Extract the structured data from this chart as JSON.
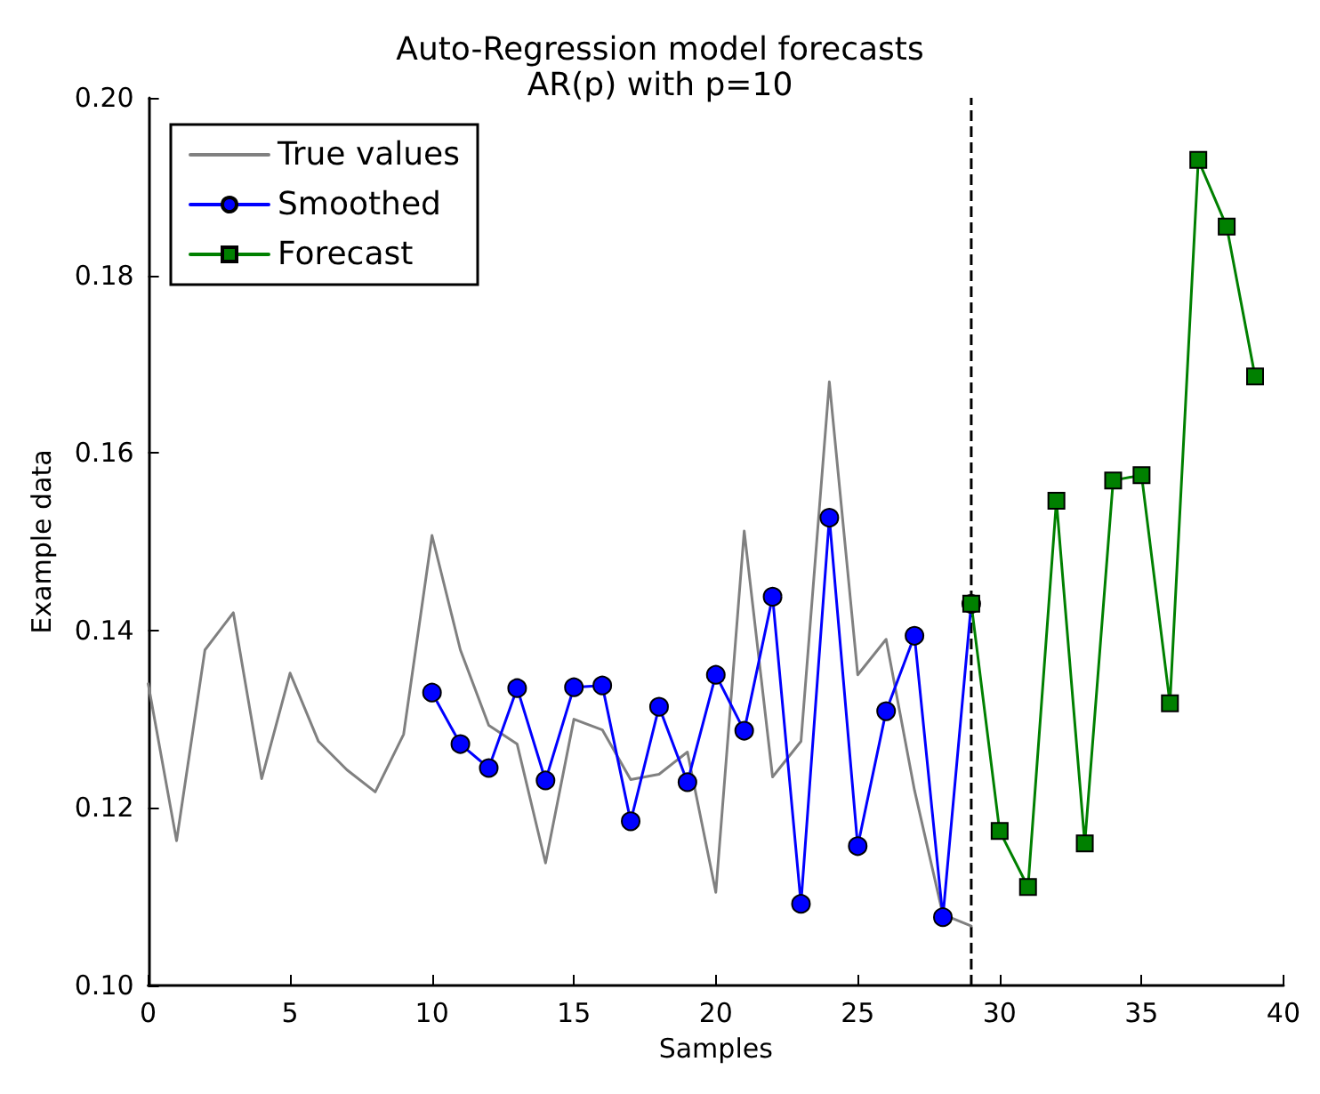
{
  "chart_data": {
    "type": "line",
    "title": "Auto-Regression model forecasts",
    "subtitle": "AR(p) with p=10",
    "xlabel": "Samples",
    "ylabel": "Example data",
    "xlim": [
      0,
      40
    ],
    "xticks": [
      0,
      5,
      10,
      15,
      20,
      25,
      30,
      35,
      40
    ],
    "ylim": [
      0.1,
      0.2
    ],
    "yticks": [
      {
        "value": 0.1,
        "label": "0.10"
      },
      {
        "value": 0.12,
        "label": "0.12"
      },
      {
        "value": 0.14,
        "label": "0.14"
      },
      {
        "value": 0.16,
        "label": "0.16"
      },
      {
        "value": 0.18,
        "label": "0.18"
      },
      {
        "value": 0.2,
        "label": "0.20"
      }
    ],
    "grid": false,
    "legend": "top left",
    "line_style": "solid",
    "series": [
      {
        "name": "True values",
        "color": "#808080",
        "marker": "none",
        "x": [
          0,
          1,
          2,
          3,
          4,
          5,
          6,
          7,
          8,
          9,
          10,
          11,
          12,
          13,
          14,
          15,
          16,
          17,
          18,
          19,
          20,
          21,
          22,
          23,
          24,
          25,
          26,
          27,
          28,
          29
        ],
        "values": [
          0.134,
          0.1163,
          0.1378,
          0.142,
          0.1233,
          0.1352,
          0.1275,
          0.1243,
          0.1218,
          0.1283,
          0.1507,
          0.1378,
          0.1293,
          0.1272,
          0.1138,
          0.13,
          0.1288,
          0.1232,
          0.1238,
          0.1263,
          0.1105,
          0.1512,
          0.1235,
          0.1275,
          0.168,
          0.135,
          0.139,
          0.122,
          0.108,
          0.1067
        ]
      },
      {
        "name": "Smoothed",
        "color": "#0000ff",
        "marker": "circle",
        "x": [
          10,
          11,
          12,
          13,
          14,
          15,
          16,
          17,
          18,
          19,
          20,
          21,
          22,
          23,
          24,
          25,
          26,
          27,
          28,
          29
        ],
        "values": [
          0.133,
          0.1272,
          0.1245,
          0.1335,
          0.1231,
          0.1336,
          0.1338,
          0.1185,
          0.1314,
          0.1229,
          0.135,
          0.1287,
          0.1438,
          0.1092,
          0.1527,
          0.1157,
          0.1309,
          0.1394,
          0.1077,
          0.143
        ]
      },
      {
        "name": "Forecast",
        "color": "#008000",
        "marker": "square",
        "x": [
          29,
          30,
          31,
          32,
          33,
          34,
          35,
          36,
          37,
          38,
          39
        ],
        "values": [
          0.143,
          0.1174,
          0.1111,
          0.1546,
          0.116,
          0.1569,
          0.1575,
          0.1318,
          0.193,
          0.1855,
          0.1686
        ]
      }
    ],
    "ref_lines": [
      {
        "axis": "x",
        "value": 29,
        "color": "#000000",
        "line_style": "dashed"
      }
    ]
  }
}
